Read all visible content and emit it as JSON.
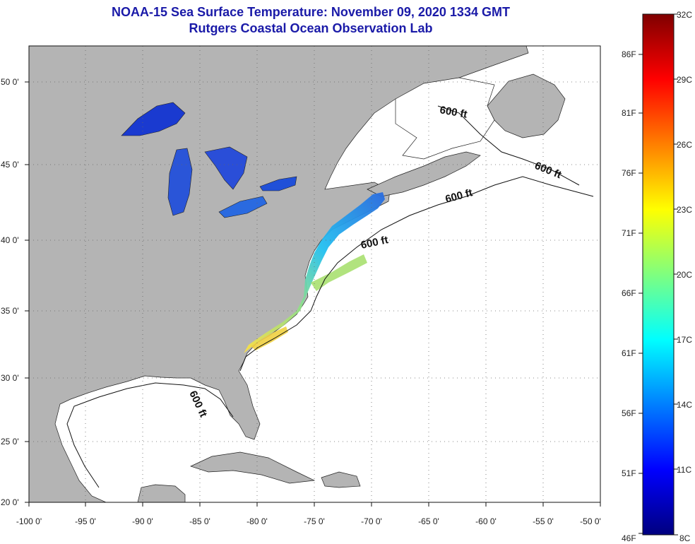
{
  "title": "NOAA-15 Sea Surface Temperature:  November 09, 2020 1334 GMT",
  "subtitle": "Rutgers Coastal Ocean Observation Lab",
  "axes": {
    "lon_ticks": [
      "-100 0'",
      "-95 0'",
      "-90 0'",
      "-85 0'",
      "-80 0'",
      "-75 0'",
      "-70 0'",
      "-65 0'",
      "-60 0'",
      "-55 0'",
      "-50 0'"
    ],
    "lat_ticks": [
      "50 0'",
      "45 0'",
      "40 0'",
      "35 0'",
      "30 0'",
      "25 0'",
      "20 0'"
    ]
  },
  "contour_labels": [
    "600 ft",
    "600 ft",
    "600 ft",
    "600 ft",
    "600 ft"
  ],
  "colorbar": {
    "celsius": [
      "32C",
      "29C",
      "26C",
      "23C",
      "20C",
      "17C",
      "14C",
      "11C",
      "8C"
    ],
    "fahrenheit": [
      "86F",
      "81F",
      "76F",
      "71F",
      "66F",
      "61F",
      "56F",
      "51F",
      "46F"
    ]
  },
  "colors": {
    "land": "#b4b4b4",
    "ocean": "#ffffff",
    "title": "#1a1aa8",
    "colorbar_stops": [
      "#00007f",
      "#0000ff",
      "#007fff",
      "#00ffff",
      "#7fff7f",
      "#ffff00",
      "#ff7f00",
      "#ff0000",
      "#7f0000"
    ]
  }
}
